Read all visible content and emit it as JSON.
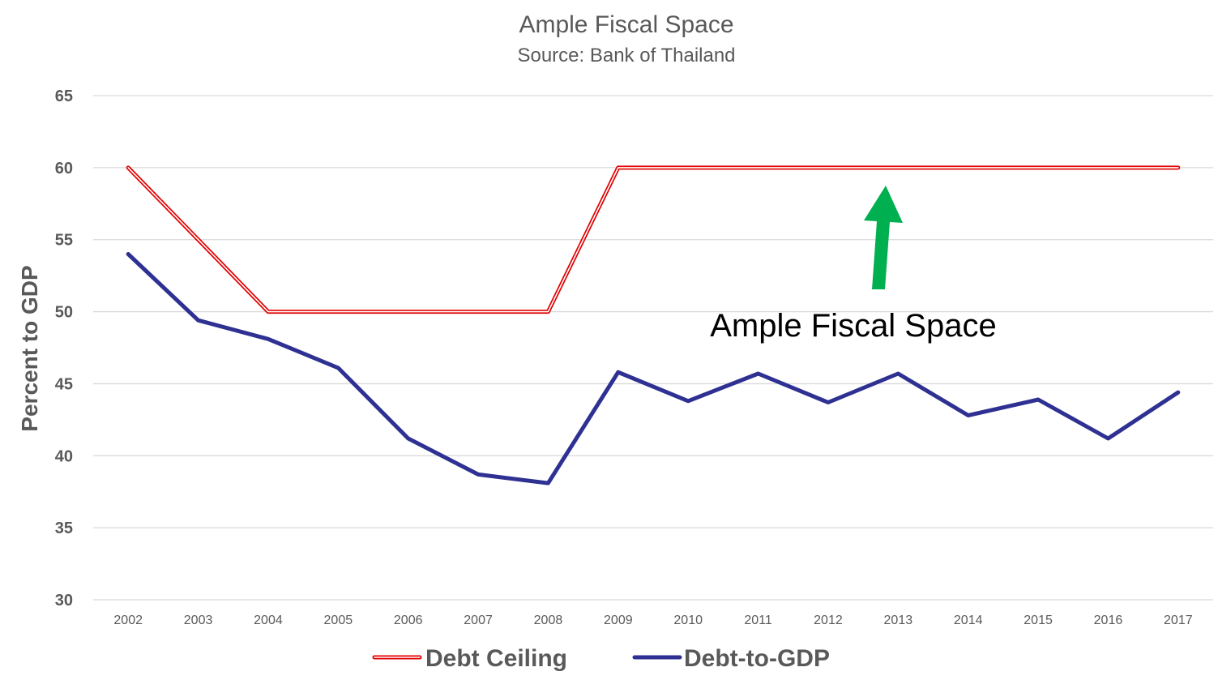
{
  "chart_data": {
    "type": "line",
    "title": "Ample Fiscal Space",
    "subtitle": "Source: Bank of Thailand",
    "ylabel": "Percent to GDP",
    "xlabel": "",
    "ylim": [
      30,
      65
    ],
    "yticks": [
      "30",
      "35",
      "40",
      "45",
      "50",
      "55",
      "60",
      "65"
    ],
    "categories": [
      "2002",
      "2003",
      "2004",
      "2005",
      "2006",
      "2007",
      "2008",
      "2009",
      "2010",
      "2011",
      "2012",
      "2013",
      "2014",
      "2015",
      "2016",
      "2017"
    ],
    "series": [
      {
        "name": "Debt Ceiling",
        "color": "#e00000",
        "style": "double-line",
        "values": [
          60,
          55,
          50,
          50,
          50,
          50,
          50,
          60,
          60,
          60,
          60,
          60,
          60,
          60,
          60,
          60
        ]
      },
      {
        "name": "Debt-to-GDP",
        "color": "#2e3192",
        "style": "solid",
        "values": [
          54,
          49.4,
          48.1,
          46.1,
          41.2,
          38.7,
          38.1,
          45.8,
          43.8,
          45.7,
          43.7,
          45.7,
          42.8,
          43.9,
          41.2,
          44.4
        ]
      }
    ],
    "grid": true,
    "legend_position": "bottom",
    "annotation": {
      "text": "Ample Fiscal Space",
      "arrow_color": "#00b050",
      "arrow": "up"
    }
  }
}
